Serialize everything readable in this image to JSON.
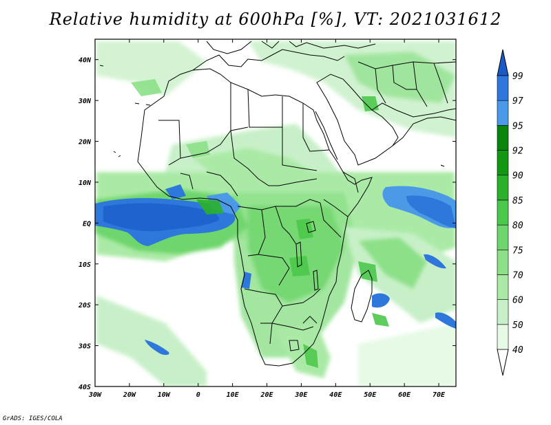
{
  "title": "Relative humidity at 600hPa [%], VT: 2021031612",
  "credit": "GrADS: IGES/COLA",
  "map": {
    "projection": "lat-lon",
    "lon_range": [
      -30,
      75
    ],
    "lat_range": [
      -40,
      45
    ],
    "lat_labels": [
      "40N",
      "30N",
      "20N",
      "10N",
      "EQ",
      "10S",
      "20S",
      "30S",
      "40S"
    ],
    "lat_values": [
      40,
      30,
      20,
      10,
      0,
      -10,
      -20,
      -30,
      -40
    ],
    "lon_labels": [
      "30W",
      "20W",
      "10W",
      "0",
      "10E",
      "20E",
      "30E",
      "40E",
      "50E",
      "60E",
      "70E"
    ],
    "lon_values": [
      -30,
      -20,
      -10,
      0,
      10,
      20,
      30,
      40,
      50,
      60,
      70
    ],
    "field": "relative humidity",
    "level": "600hPa",
    "units": "%"
  },
  "colorbar": {
    "levels": [
      "40",
      "50",
      "60",
      "70",
      "75",
      "80",
      "85",
      "90",
      "92",
      "95",
      "97",
      "99"
    ],
    "colors": [
      "#ffffff",
      "#e6fae6",
      "#c8f0c8",
      "#aaeaa6",
      "#8ce088",
      "#6ed66c",
      "#4cc84c",
      "#2ab02a",
      "#129812",
      "#0a840a",
      "#4a9ae8",
      "#2e78dc",
      "#1a5ac8"
    ],
    "extend": "both"
  },
  "regions": {
    "guinea_coast_band": "blue",
    "congo_basin": "green",
    "southern_indian_ocean_band": "green",
    "madagascar_east": "blue"
  }
}
